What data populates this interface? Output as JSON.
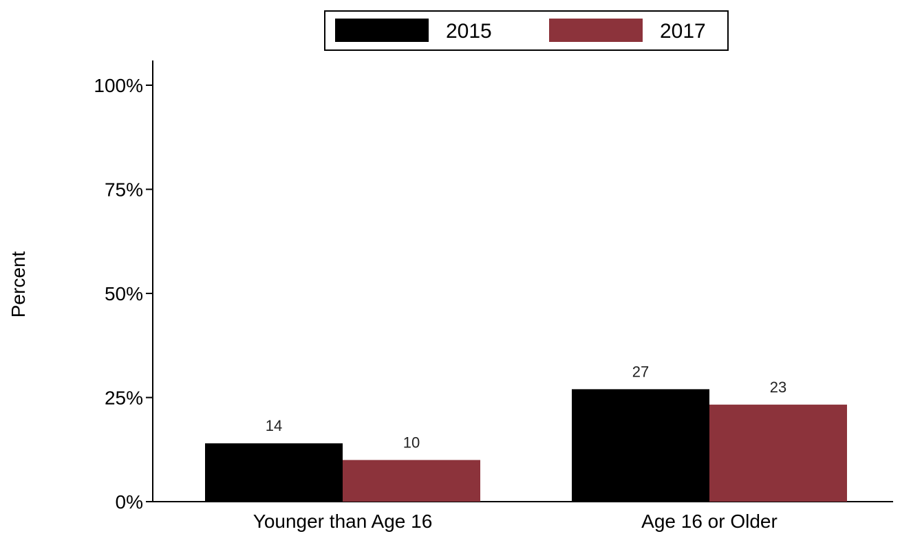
{
  "chart_data": {
    "type": "bar",
    "title": "",
    "xlabel": "",
    "ylabel": "Percent",
    "categories": [
      "Younger than Age 16",
      "Age 16 or Older"
    ],
    "series": [
      {
        "name": "2015",
        "color": "#000000",
        "values": [
          14,
          27
        ],
        "labels": [
          "14",
          "27"
        ]
      },
      {
        "name": "2017",
        "color": "#8c333b",
        "values": [
          10,
          23.3
        ],
        "labels": [
          "10",
          "23"
        ]
      }
    ],
    "ylim": [
      0,
      100
    ],
    "yticks": [
      0,
      25,
      50,
      75,
      100
    ],
    "ytick_labels": [
      "0%",
      "25%",
      "50%",
      "75%",
      "100%"
    ],
    "grid": false,
    "legend_position": "top-center"
  }
}
